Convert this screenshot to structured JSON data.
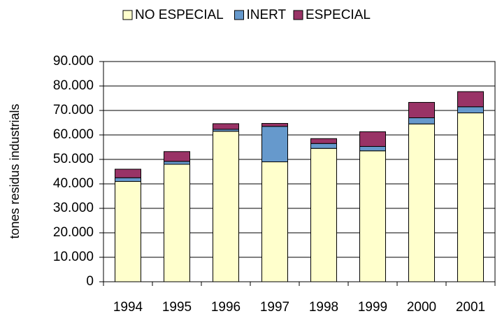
{
  "chart_data": {
    "type": "stacked_bar",
    "y_label": "tones residus industrials",
    "categories": [
      "1994",
      "1995",
      "1996",
      "1997",
      "1998",
      "1999",
      "2000",
      "2001"
    ],
    "series": [
      {
        "name": "NO ESPECIAL",
        "color": "#ffffcc",
        "values": [
          41000,
          48000,
          61500,
          49000,
          54500,
          53500,
          64500,
          69000
        ]
      },
      {
        "name": "INERT",
        "color": "#6699cc",
        "values": [
          1500,
          1200,
          800,
          14500,
          2000,
          1800,
          2500,
          2500
        ]
      },
      {
        "name": "ESPECIAL",
        "color": "#993366",
        "values": [
          3500,
          4000,
          2300,
          1200,
          2000,
          6000,
          6300,
          6200
        ]
      }
    ],
    "ylim": [
      0,
      90000
    ],
    "yticks": [
      0,
      {
        "value": 10000,
        "label": "10.000"
      },
      {
        "value": 20000,
        "label": "20.000"
      },
      {
        "value": 30000,
        "label": "30.000"
      },
      {
        "value": 40000,
        "label": "40.000"
      },
      {
        "value": 50000,
        "label": "50.000"
      },
      {
        "value": 60000,
        "label": "60.000"
      },
      {
        "value": 70000,
        "label": "70.000"
      },
      {
        "value": 80000,
        "label": "80.000"
      },
      {
        "value": 90000,
        "label": "90.000"
      }
    ],
    "grid": true,
    "legend": "top"
  }
}
